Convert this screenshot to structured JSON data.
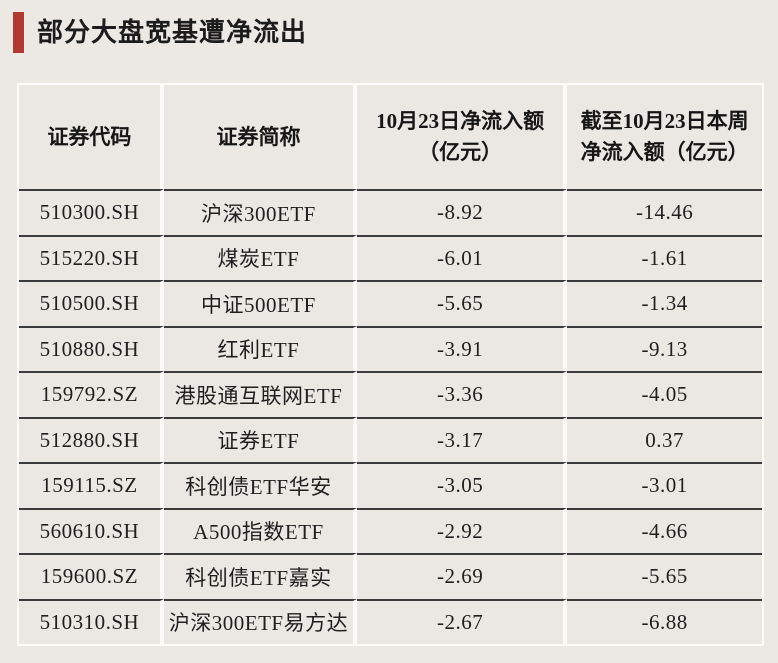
{
  "page": {
    "title": "部分大盘宽基遭净流出",
    "accent_color": "#b2392f",
    "background_color": "#ece9e5",
    "row_line_color": "#3b3b3b"
  },
  "table": {
    "columns": [
      "证券代码",
      "证券简称",
      "10月23日净流入额\n（亿元）",
      "截至10月23日本周\n净流入额（亿元）"
    ],
    "rows": [
      {
        "code": "510300.SH",
        "name": "沪深300ETF",
        "day_flow": "-8.92",
        "week_flow": "-14.46"
      },
      {
        "code": "515220.SH",
        "name": "煤炭ETF",
        "day_flow": "-6.01",
        "week_flow": "-1.61"
      },
      {
        "code": "510500.SH",
        "name": "中证500ETF",
        "day_flow": "-5.65",
        "week_flow": "-1.34"
      },
      {
        "code": "510880.SH",
        "name": "红利ETF",
        "day_flow": "-3.91",
        "week_flow": "-9.13"
      },
      {
        "code": "159792.SZ",
        "name": "港股通互联网ETF",
        "day_flow": "-3.36",
        "week_flow": "-4.05"
      },
      {
        "code": "512880.SH",
        "name": "证券ETF",
        "day_flow": "-3.17",
        "week_flow": "0.37"
      },
      {
        "code": "159115.SZ",
        "name": "科创债ETF华安",
        "day_flow": "-3.05",
        "week_flow": "-3.01"
      },
      {
        "code": "560610.SH",
        "name": "A500指数ETF",
        "day_flow": "-2.92",
        "week_flow": "-4.66"
      },
      {
        "code": "159600.SZ",
        "name": "科创债ETF嘉实",
        "day_flow": "-2.69",
        "week_flow": "-5.65"
      },
      {
        "code": "510310.SH",
        "name": "沪深300ETF易方达",
        "day_flow": "-2.67",
        "week_flow": "-6.88"
      }
    ]
  }
}
